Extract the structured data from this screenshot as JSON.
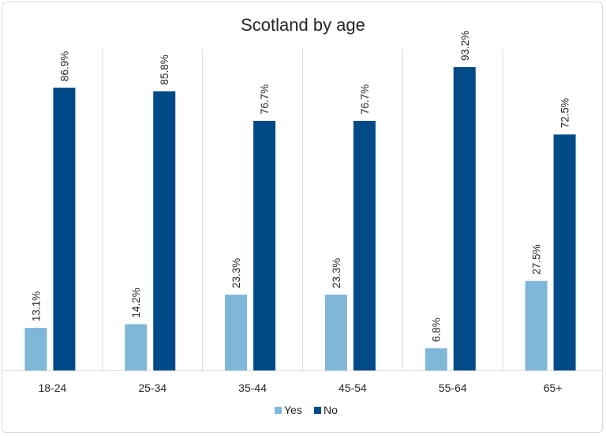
{
  "chart_data": {
    "type": "bar",
    "title": "Scotland by age",
    "xlabel": "",
    "ylabel": "",
    "categories": [
      "18-24",
      "25-34",
      "35-44",
      "45-54",
      "55-64",
      "65+"
    ],
    "series": [
      {
        "name": "Yes",
        "color": "#7fb7d8",
        "values": [
          13.1,
          14.2,
          23.3,
          23.3,
          6.8,
          27.5
        ],
        "labels": [
          "13.1%",
          "14.2%",
          "23.3%",
          "23.3%",
          "6.8%",
          "27.5%"
        ]
      },
      {
        "name": "No",
        "color": "#004b87",
        "values": [
          86.9,
          85.8,
          76.7,
          76.7,
          93.2,
          72.5
        ],
        "labels": [
          "86.9%",
          "85.8%",
          "76.7%",
          "76.7%",
          "93.2%",
          "72.5%"
        ]
      }
    ],
    "ylim": [
      0,
      100
    ],
    "grid": false,
    "category_separators": true,
    "legend": "bottom"
  }
}
